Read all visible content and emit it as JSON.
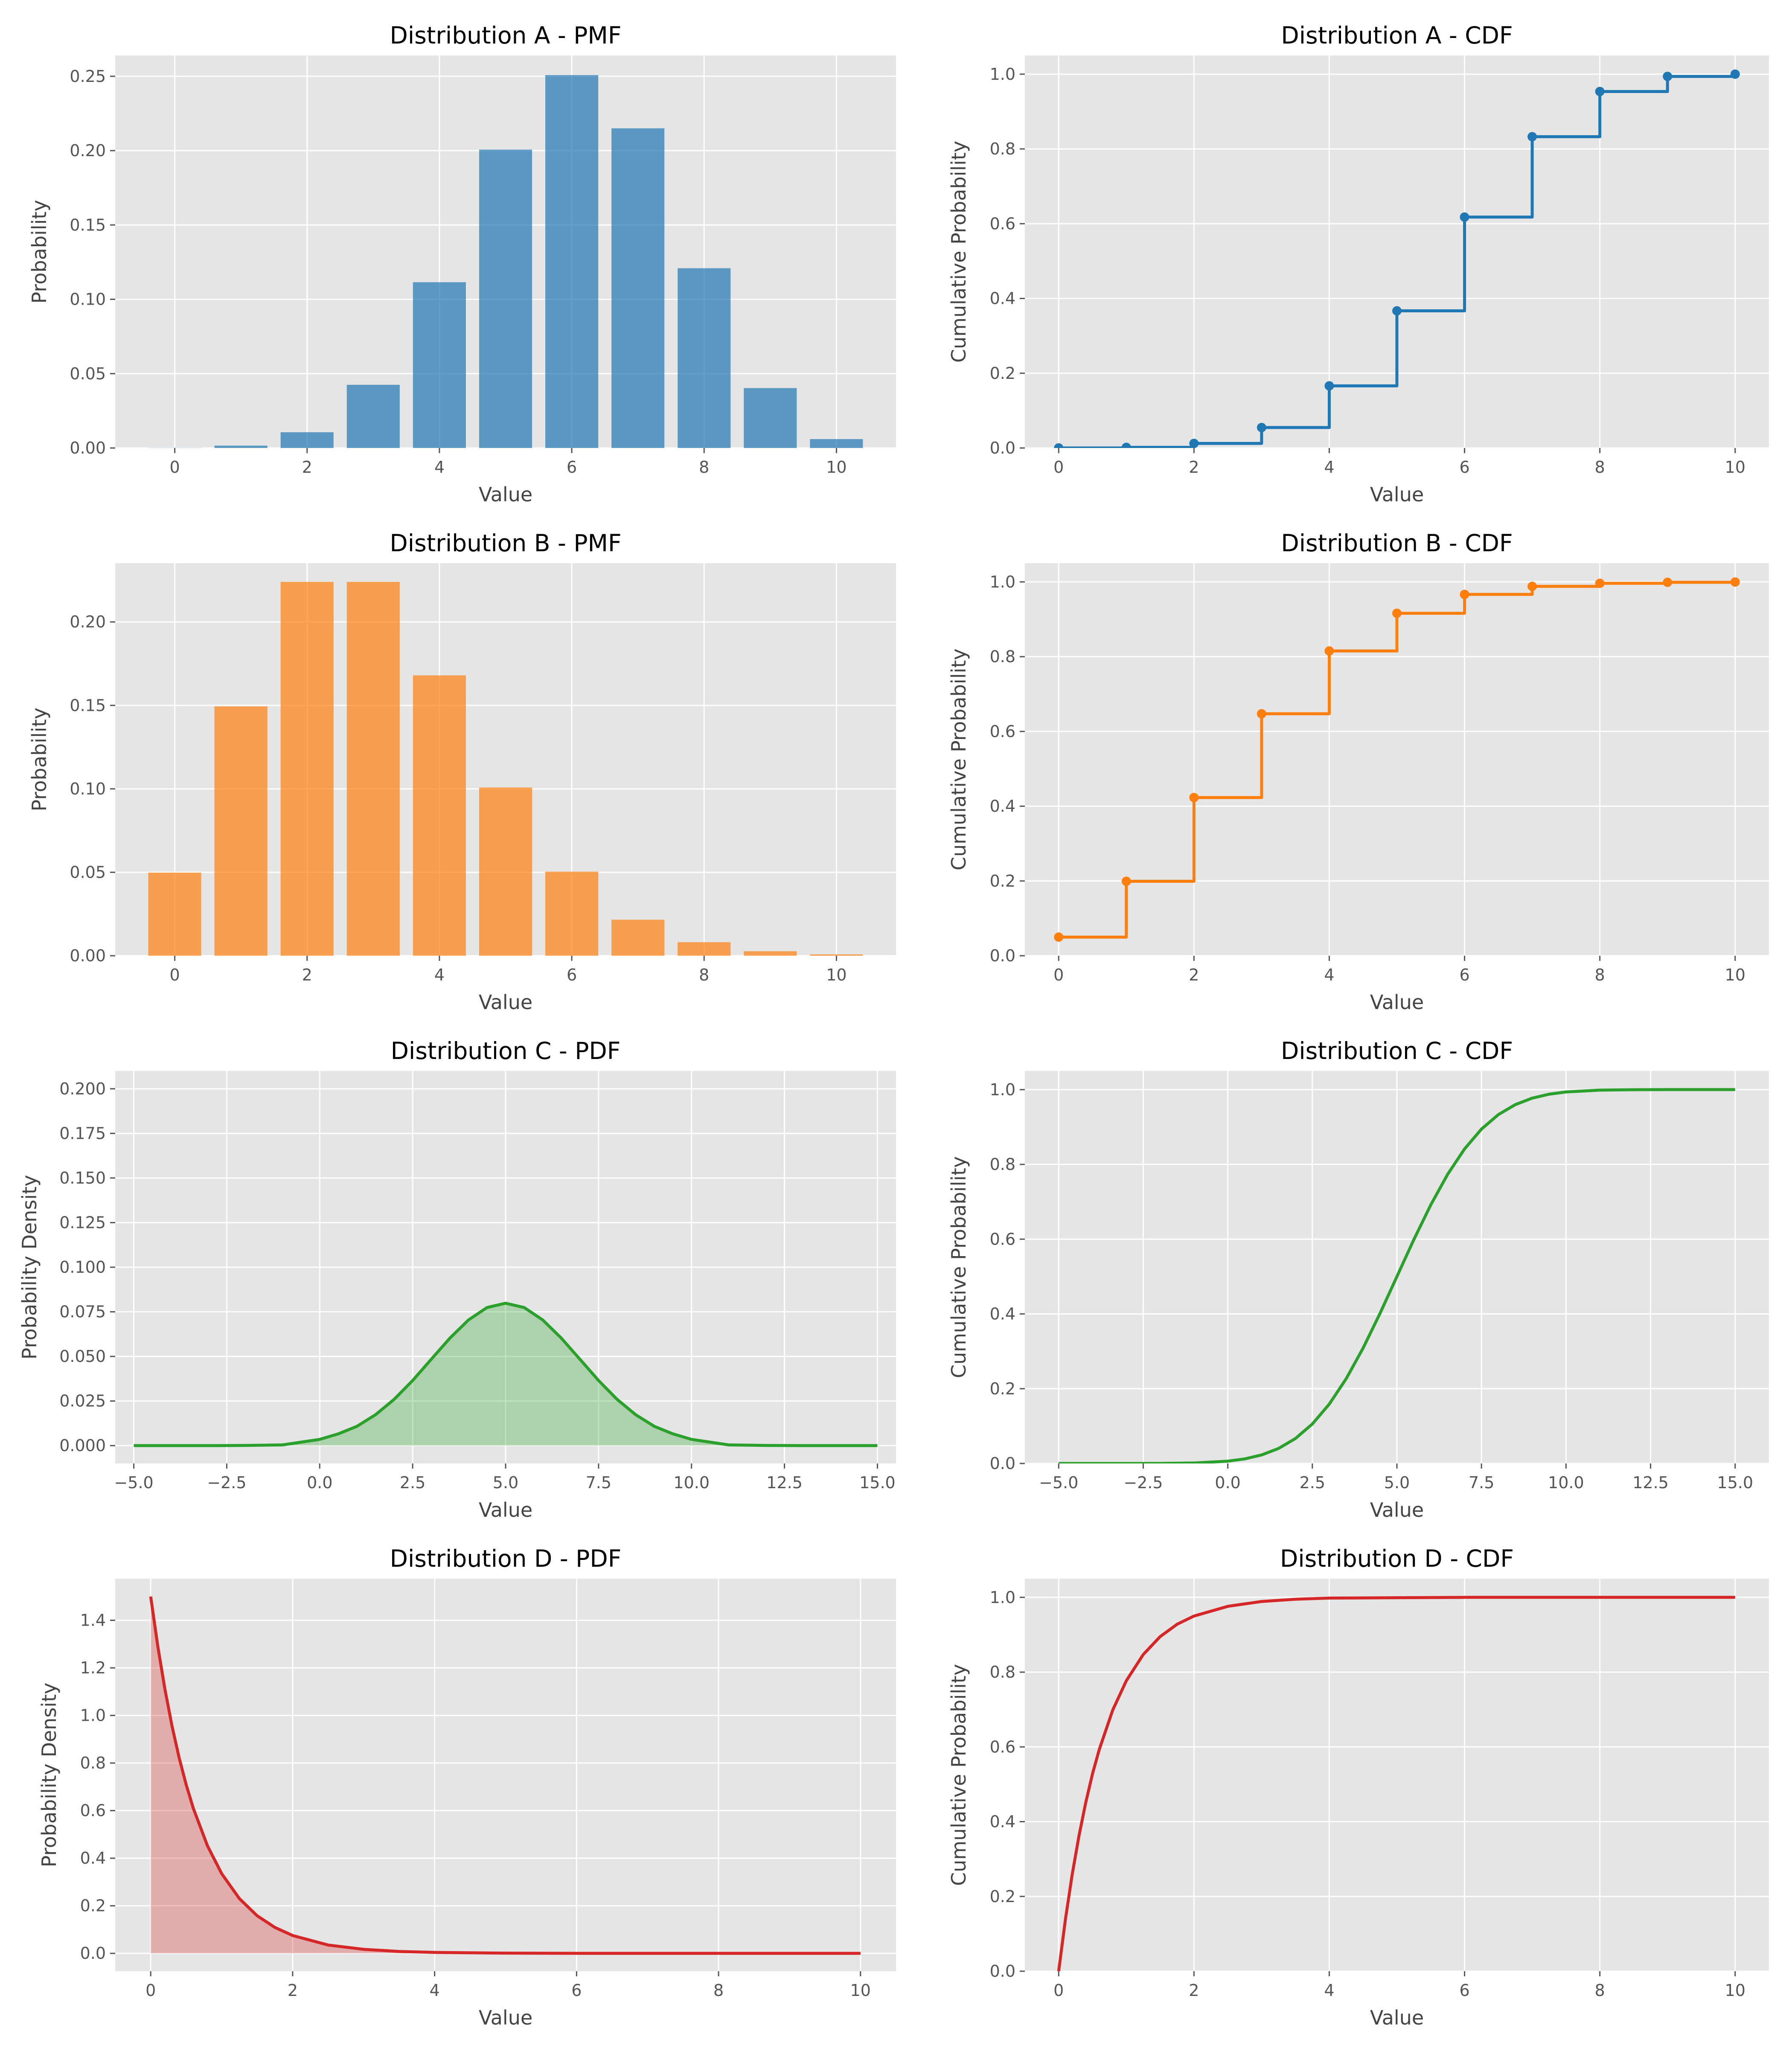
{
  "chart_data": [
    {
      "id": "a-pmf",
      "type": "bar",
      "title": "Distribution A - PMF",
      "xlabel": "Value",
      "ylabel": "Probability",
      "color": "#1f77b4",
      "x": [
        0,
        1,
        2,
        3,
        4,
        5,
        6,
        7,
        8,
        9,
        10
      ],
      "values": [
        0.0001,
        0.0016,
        0.0106,
        0.0425,
        0.1115,
        0.2007,
        0.2508,
        0.215,
        0.1209,
        0.0403,
        0.006
      ],
      "xlim": [
        -0.9,
        10.9
      ],
      "ylim": [
        0,
        0.264
      ],
      "xticks": [
        0,
        2,
        4,
        6,
        8,
        10
      ],
      "xtick_labels": [
        "0",
        "2",
        "4",
        "6",
        "8",
        "10"
      ],
      "yticks": [
        0,
        0.05,
        0.1,
        0.15,
        0.2,
        0.25
      ],
      "ytick_labels": [
        "0.00",
        "0.05",
        "0.10",
        "0.15",
        "0.20",
        "0.25"
      ],
      "grid": true
    },
    {
      "id": "a-cdf",
      "type": "line",
      "step": true,
      "markers": true,
      "title": "Distribution A - CDF",
      "xlabel": "Value",
      "ylabel": "Cumulative Probability",
      "color": "#1f77b4",
      "x": [
        0,
        1,
        2,
        3,
        4,
        5,
        6,
        7,
        8,
        9,
        10
      ],
      "y": [
        0.0001,
        0.0017,
        0.0123,
        0.0548,
        0.1662,
        0.3669,
        0.6177,
        0.8327,
        0.9536,
        0.994,
        1.0
      ],
      "xlim": [
        -0.5,
        10.5
      ],
      "ylim": [
        0,
        1.05
      ],
      "xticks": [
        0,
        2,
        4,
        6,
        8,
        10
      ],
      "xtick_labels": [
        "0",
        "2",
        "4",
        "6",
        "8",
        "10"
      ],
      "yticks": [
        0,
        0.2,
        0.4,
        0.6,
        0.8,
        1.0
      ],
      "ytick_labels": [
        "0.0",
        "0.2",
        "0.4",
        "0.6",
        "0.8",
        "1.0"
      ],
      "grid": true
    },
    {
      "id": "b-pmf",
      "type": "bar",
      "title": "Distribution B - PMF",
      "xlabel": "Value",
      "ylabel": "Probability",
      "color": "#ff7f0e",
      "x": [
        0,
        1,
        2,
        3,
        4,
        5,
        6,
        7,
        8,
        9,
        10
      ],
      "values": [
        0.0498,
        0.1494,
        0.224,
        0.224,
        0.168,
        0.1008,
        0.0504,
        0.0216,
        0.0081,
        0.0027,
        0.0008
      ],
      "xlim": [
        -0.9,
        10.9
      ],
      "ylim": [
        0,
        0.2352
      ],
      "xticks": [
        0,
        2,
        4,
        6,
        8,
        10
      ],
      "xtick_labels": [
        "0",
        "2",
        "4",
        "6",
        "8",
        "10"
      ],
      "yticks": [
        0,
        0.05,
        0.1,
        0.15,
        0.2
      ],
      "ytick_labels": [
        "0.00",
        "0.05",
        "0.10",
        "0.15",
        "0.20"
      ],
      "grid": true
    },
    {
      "id": "b-cdf",
      "type": "line",
      "step": true,
      "markers": true,
      "title": "Distribution B - CDF",
      "xlabel": "Value",
      "ylabel": "Cumulative Probability",
      "color": "#ff7f0e",
      "x": [
        0,
        1,
        2,
        3,
        4,
        5,
        6,
        7,
        8,
        9,
        10
      ],
      "y": [
        0.0498,
        0.1991,
        0.4232,
        0.6472,
        0.8153,
        0.9161,
        0.9665,
        0.9881,
        0.9962,
        0.9989,
        0.9997
      ],
      "xlim": [
        -0.5,
        10.5
      ],
      "ylim": [
        0,
        1.05
      ],
      "xticks": [
        0,
        2,
        4,
        6,
        8,
        10
      ],
      "xtick_labels": [
        "0",
        "2",
        "4",
        "6",
        "8",
        "10"
      ],
      "yticks": [
        0,
        0.2,
        0.4,
        0.6,
        0.8,
        1.0
      ],
      "ytick_labels": [
        "0.0",
        "0.2",
        "0.4",
        "0.6",
        "0.8",
        "1.0"
      ],
      "grid": true
    },
    {
      "id": "c-pdf",
      "type": "area",
      "title": "Distribution C - PDF",
      "xlabel": "Value",
      "ylabel": "Probability Density",
      "color": "#2ca02c",
      "x": [
        -5,
        -4,
        -3,
        -2,
        -1,
        0,
        0.5,
        1,
        1.5,
        2,
        2.5,
        3,
        3.5,
        4,
        4.5,
        5,
        5.5,
        6,
        6.5,
        7,
        7.5,
        8,
        8.5,
        9,
        9.5,
        10,
        11,
        12,
        13,
        14,
        15
      ],
      "y": [
        0.0,
        0.0,
        0.0,
        0.0001,
        0.0004,
        0.0035,
        0.0066,
        0.0108,
        0.0173,
        0.0259,
        0.0365,
        0.0484,
        0.0602,
        0.0704,
        0.0774,
        0.0798,
        0.0774,
        0.0704,
        0.0602,
        0.0484,
        0.0365,
        0.0259,
        0.0173,
        0.0108,
        0.0066,
        0.0035,
        0.0004,
        0.0001,
        0.0,
        0.0,
        0.0
      ],
      "xlim": [
        -5.5,
        15.5
      ],
      "ylim": [
        -0.01,
        0.21
      ],
      "xticks": [
        -5,
        -2.5,
        0,
        2.5,
        5,
        7.5,
        10,
        12.5,
        15
      ],
      "xtick_labels": [
        "−5.0",
        "−2.5",
        "0.0",
        "2.5",
        "5.0",
        "7.5",
        "10.0",
        "12.5",
        "15.0"
      ],
      "yticks": [
        0,
        0.025,
        0.05,
        0.075,
        0.1,
        0.125,
        0.15,
        0.175,
        0.2
      ],
      "ytick_labels": [
        "0.000",
        "0.025",
        "0.050",
        "0.075",
        "0.100",
        "0.125",
        "0.150",
        "0.175",
        "0.200"
      ],
      "grid": true
    },
    {
      "id": "c-cdf",
      "type": "line",
      "title": "Distribution C - CDF",
      "xlabel": "Value",
      "ylabel": "Cumulative Probability",
      "color": "#2ca02c",
      "x": [
        -5,
        -4,
        -3,
        -2,
        -1,
        0,
        0.5,
        1,
        1.5,
        2,
        2.5,
        3,
        3.5,
        4,
        4.5,
        5,
        5.5,
        6,
        6.5,
        7,
        7.5,
        8,
        8.5,
        9,
        9.5,
        10,
        11,
        12,
        13,
        14,
        15
      ],
      "y": [
        0.0,
        0.0,
        0.0,
        0.0002,
        0.0013,
        0.0062,
        0.0122,
        0.0228,
        0.0401,
        0.0668,
        0.1056,
        0.1587,
        0.2266,
        0.3085,
        0.4013,
        0.5,
        0.5987,
        0.6915,
        0.7734,
        0.8413,
        0.8944,
        0.9332,
        0.9599,
        0.9772,
        0.9878,
        0.9938,
        0.9987,
        0.9998,
        1.0,
        1.0,
        1.0
      ],
      "xlim": [
        -6.0,
        16.0
      ],
      "ylim": [
        0,
        1.05
      ],
      "xticks": [
        -5,
        -2.5,
        0,
        2.5,
        5,
        7.5,
        10,
        12.5,
        15
      ],
      "xtick_labels": [
        "−5.0",
        "−2.5",
        "0.0",
        "2.5",
        "5.0",
        "7.5",
        "10.0",
        "12.5",
        "15.0"
      ],
      "yticks": [
        0,
        0.2,
        0.4,
        0.6,
        0.8,
        1.0
      ],
      "ytick_labels": [
        "0.0",
        "0.2",
        "0.4",
        "0.6",
        "0.8",
        "1.0"
      ],
      "grid": true
    },
    {
      "id": "d-pdf",
      "type": "area",
      "title": "Distribution D - PDF",
      "xlabel": "Value",
      "ylabel": "Probability Density",
      "color": "#d62728",
      "x": [
        0,
        0.1,
        0.2,
        0.3,
        0.4,
        0.5,
        0.6,
        0.8,
        1.0,
        1.25,
        1.5,
        1.75,
        2.0,
        2.5,
        3.0,
        3.5,
        4.0,
        5.0,
        6.0,
        7.0,
        8.0,
        9.0,
        10.0
      ],
      "y": [
        1.5,
        1.291,
        1.111,
        0.956,
        0.823,
        0.709,
        0.61,
        0.452,
        0.335,
        0.23,
        0.158,
        0.109,
        0.075,
        0.035,
        0.017,
        0.008,
        0.004,
        0.001,
        0.0,
        0.0,
        0.0,
        0.0,
        0.0
      ],
      "xlim": [
        -0.5,
        10.5
      ],
      "ylim": [
        -0.075,
        1.575
      ],
      "xticks": [
        0,
        2,
        4,
        6,
        8,
        10
      ],
      "xtick_labels": [
        "0",
        "2",
        "4",
        "6",
        "8",
        "10"
      ],
      "yticks": [
        0,
        0.2,
        0.4,
        0.6,
        0.8,
        1.0,
        1.2,
        1.4
      ],
      "ytick_labels": [
        "0.0",
        "0.2",
        "0.4",
        "0.6",
        "0.8",
        "1.0",
        "1.2",
        "1.4"
      ],
      "grid": true
    },
    {
      "id": "d-cdf",
      "type": "line",
      "title": "Distribution D - CDF",
      "xlabel": "Value",
      "ylabel": "Cumulative Probability",
      "color": "#d62728",
      "x": [
        0,
        0.1,
        0.2,
        0.3,
        0.4,
        0.5,
        0.6,
        0.8,
        1.0,
        1.25,
        1.5,
        1.75,
        2.0,
        2.5,
        3.0,
        3.5,
        4.0,
        5.0,
        6.0,
        7.0,
        8.0,
        9.0,
        10.0
      ],
      "y": [
        0.0,
        0.139,
        0.259,
        0.362,
        0.451,
        0.528,
        0.593,
        0.699,
        0.777,
        0.847,
        0.895,
        0.928,
        0.95,
        0.976,
        0.989,
        0.995,
        0.998,
        0.999,
        1.0,
        1.0,
        1.0,
        1.0,
        1.0
      ],
      "xlim": [
        -0.5,
        10.5
      ],
      "ylim": [
        0,
        1.05
      ],
      "xticks": [
        0,
        2,
        4,
        6,
        8,
        10
      ],
      "xtick_labels": [
        "0",
        "2",
        "4",
        "6",
        "8",
        "10"
      ],
      "yticks": [
        0,
        0.2,
        0.4,
        0.6,
        0.8,
        1.0
      ],
      "ytick_labels": [
        "0.0",
        "0.2",
        "0.4",
        "0.6",
        "0.8",
        "1.0"
      ],
      "grid": true
    }
  ]
}
